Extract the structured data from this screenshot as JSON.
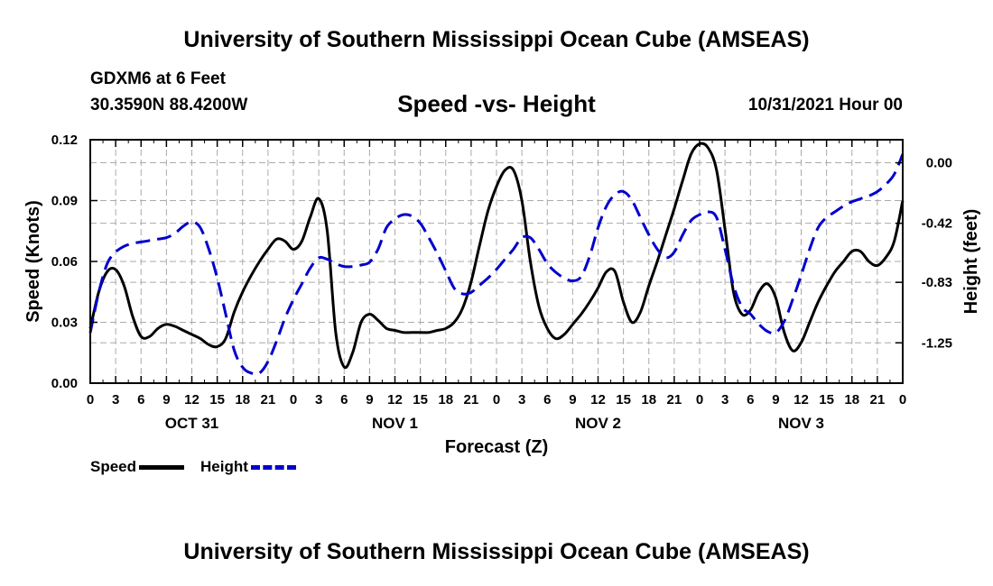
{
  "title": "University of Southern Mississippi Ocean Cube (AMSEAS)",
  "footer_title": "University of Southern Mississippi Ocean Cube (AMSEAS)",
  "station": "GDXM6 at 6 Feet",
  "coords": "30.3590N  88.4200W",
  "subtitle": "Speed -vs- Height",
  "datetime": "10/31/2021 Hour 00",
  "chart_data": {
    "type": "line",
    "title": "Speed -vs- Height",
    "xlabel": "Forecast (Z)",
    "ylabel": "Speed (Knots)",
    "y2label": "Height (feet)",
    "x_range_hours": [
      0,
      96
    ],
    "x_tick_labels": [
      "0",
      "3",
      "6",
      "9",
      "12",
      "15",
      "18",
      "21",
      "0",
      "3",
      "6",
      "9",
      "12",
      "15",
      "18",
      "21",
      "0",
      "3",
      "6",
      "9",
      "12",
      "15",
      "18",
      "21",
      "0",
      "3",
      "6",
      "9",
      "12",
      "15",
      "18",
      "21",
      "0"
    ],
    "day_labels": [
      {
        "label": "OCT 31",
        "hour": 12
      },
      {
        "label": "NOV 1",
        "hour": 36
      },
      {
        "label": "NOV 2",
        "hour": 60
      },
      {
        "label": "NOV 3",
        "hour": 84
      }
    ],
    "ylim": [
      0,
      0.12
    ],
    "y_ticks": [
      "0.00",
      "0.03",
      "0.06",
      "0.09",
      "0.12"
    ],
    "y2lim": [
      -1.53,
      0.16
    ],
    "y2_ticks": [
      {
        "label": "0.00",
        "value": 0.0
      },
      {
        "label": "-0.42",
        "value": -0.42
      },
      {
        "label": "-0.83",
        "value": -0.83
      },
      {
        "label": "-1.25",
        "value": -1.25
      }
    ],
    "grid": true,
    "legend_position": "bottom-left",
    "series": [
      {
        "name": "Speed",
        "axis": "left",
        "color": "#000000",
        "dash": "solid",
        "points": [
          [
            0,
            0.027
          ],
          [
            1,
            0.045
          ],
          [
            2,
            0.055
          ],
          [
            3,
            0.056
          ],
          [
            4,
            0.048
          ],
          [
            5,
            0.033
          ],
          [
            6,
            0.023
          ],
          [
            7,
            0.023
          ],
          [
            8,
            0.027
          ],
          [
            9,
            0.029
          ],
          [
            10,
            0.028
          ],
          [
            11,
            0.026
          ],
          [
            12,
            0.024
          ],
          [
            13,
            0.022
          ],
          [
            14,
            0.019
          ],
          [
            15,
            0.018
          ],
          [
            16,
            0.022
          ],
          [
            17,
            0.035
          ],
          [
            18,
            0.045
          ],
          [
            19,
            0.053
          ],
          [
            20,
            0.06
          ],
          [
            21,
            0.066
          ],
          [
            22,
            0.071
          ],
          [
            23,
            0.07
          ],
          [
            24,
            0.066
          ],
          [
            25,
            0.07
          ],
          [
            26,
            0.082
          ],
          [
            27,
            0.091
          ],
          [
            28,
            0.075
          ],
          [
            29,
            0.025
          ],
          [
            30,
            0.008
          ],
          [
            31,
            0.015
          ],
          [
            32,
            0.03
          ],
          [
            33,
            0.034
          ],
          [
            34,
            0.031
          ],
          [
            35,
            0.027
          ],
          [
            36,
            0.026
          ],
          [
            37,
            0.025
          ],
          [
            38,
            0.025
          ],
          [
            39,
            0.025
          ],
          [
            40,
            0.025
          ],
          [
            41,
            0.026
          ],
          [
            42,
            0.027
          ],
          [
            43,
            0.03
          ],
          [
            44,
            0.037
          ],
          [
            45,
            0.05
          ],
          [
            46,
            0.068
          ],
          [
            47,
            0.085
          ],
          [
            48,
            0.097
          ],
          [
            49,
            0.105
          ],
          [
            50,
            0.105
          ],
          [
            51,
            0.09
          ],
          [
            52,
            0.06
          ],
          [
            53,
            0.038
          ],
          [
            54,
            0.027
          ],
          [
            55,
            0.022
          ],
          [
            56,
            0.024
          ],
          [
            57,
            0.029
          ],
          [
            58,
            0.034
          ],
          [
            59,
            0.04
          ],
          [
            60,
            0.047
          ],
          [
            61,
            0.055
          ],
          [
            62,
            0.055
          ],
          [
            63,
            0.04
          ],
          [
            64,
            0.03
          ],
          [
            65,
            0.035
          ],
          [
            66,
            0.048
          ],
          [
            67,
            0.06
          ],
          [
            68,
            0.073
          ],
          [
            69,
            0.086
          ],
          [
            70,
            0.1
          ],
          [
            71,
            0.113
          ],
          [
            72,
            0.118
          ],
          [
            73,
            0.116
          ],
          [
            74,
            0.105
          ],
          [
            75,
            0.076
          ],
          [
            76,
            0.045
          ],
          [
            77,
            0.034
          ],
          [
            78,
            0.036
          ],
          [
            79,
            0.045
          ],
          [
            80,
            0.049
          ],
          [
            81,
            0.042
          ],
          [
            82,
            0.025
          ],
          [
            83,
            0.016
          ],
          [
            84,
            0.02
          ],
          [
            85,
            0.03
          ],
          [
            86,
            0.04
          ],
          [
            87,
            0.048
          ],
          [
            88,
            0.055
          ],
          [
            89,
            0.06
          ],
          [
            90,
            0.065
          ],
          [
            91,
            0.065
          ],
          [
            92,
            0.06
          ],
          [
            93,
            0.058
          ],
          [
            94,
            0.062
          ],
          [
            95,
            0.07
          ],
          [
            96,
            0.09
          ]
        ]
      },
      {
        "name": "Height",
        "axis": "right",
        "color": "#0000cc",
        "dash": "dashed",
        "points": [
          [
            0,
            -1.18
          ],
          [
            1,
            -0.9
          ],
          [
            2,
            -0.7
          ],
          [
            3,
            -0.62
          ],
          [
            4,
            -0.58
          ],
          [
            5,
            -0.56
          ],
          [
            6,
            -0.55
          ],
          [
            7,
            -0.54
          ],
          [
            8,
            -0.53
          ],
          [
            9,
            -0.52
          ],
          [
            10,
            -0.49
          ],
          [
            11,
            -0.44
          ],
          [
            12,
            -0.41
          ],
          [
            13,
            -0.45
          ],
          [
            14,
            -0.6
          ],
          [
            15,
            -0.8
          ],
          [
            16,
            -1.05
          ],
          [
            17,
            -1.3
          ],
          [
            18,
            -1.42
          ],
          [
            19,
            -1.46
          ],
          [
            20,
            -1.46
          ],
          [
            21,
            -1.38
          ],
          [
            22,
            -1.24
          ],
          [
            23,
            -1.08
          ],
          [
            24,
            -0.95
          ],
          [
            25,
            -0.84
          ],
          [
            26,
            -0.73
          ],
          [
            27,
            -0.66
          ],
          [
            28,
            -0.67
          ],
          [
            29,
            -0.7
          ],
          [
            30,
            -0.72
          ],
          [
            31,
            -0.72
          ],
          [
            32,
            -0.71
          ],
          [
            33,
            -0.69
          ],
          [
            34,
            -0.6
          ],
          [
            35,
            -0.45
          ],
          [
            36,
            -0.39
          ],
          [
            37,
            -0.36
          ],
          [
            38,
            -0.37
          ],
          [
            39,
            -0.42
          ],
          [
            40,
            -0.52
          ],
          [
            41,
            -0.63
          ],
          [
            42,
            -0.75
          ],
          [
            43,
            -0.87
          ],
          [
            44,
            -0.91
          ],
          [
            45,
            -0.9
          ],
          [
            46,
            -0.85
          ],
          [
            47,
            -0.8
          ],
          [
            48,
            -0.74
          ],
          [
            49,
            -0.67
          ],
          [
            50,
            -0.6
          ],
          [
            51,
            -0.52
          ],
          [
            52,
            -0.52
          ],
          [
            53,
            -0.6
          ],
          [
            54,
            -0.7
          ],
          [
            55,
            -0.76
          ],
          [
            56,
            -0.8
          ],
          [
            57,
            -0.82
          ],
          [
            58,
            -0.79
          ],
          [
            59,
            -0.65
          ],
          [
            60,
            -0.45
          ],
          [
            61,
            -0.3
          ],
          [
            62,
            -0.22
          ],
          [
            63,
            -0.2
          ],
          [
            64,
            -0.26
          ],
          [
            65,
            -0.38
          ],
          [
            66,
            -0.5
          ],
          [
            67,
            -0.6
          ],
          [
            68,
            -0.66
          ],
          [
            69,
            -0.62
          ],
          [
            70,
            -0.5
          ],
          [
            71,
            -0.4
          ],
          [
            72,
            -0.36
          ],
          [
            73,
            -0.34
          ],
          [
            74,
            -0.38
          ],
          [
            75,
            -0.6
          ],
          [
            76,
            -0.85
          ],
          [
            77,
            -1.0
          ],
          [
            78,
            -1.05
          ],
          [
            79,
            -1.12
          ],
          [
            80,
            -1.17
          ],
          [
            81,
            -1.18
          ],
          [
            82,
            -1.1
          ],
          [
            83,
            -0.95
          ],
          [
            84,
            -0.78
          ],
          [
            85,
            -0.6
          ],
          [
            86,
            -0.45
          ],
          [
            87,
            -0.38
          ],
          [
            88,
            -0.34
          ],
          [
            89,
            -0.3
          ],
          [
            90,
            -0.27
          ],
          [
            91,
            -0.25
          ],
          [
            92,
            -0.23
          ],
          [
            93,
            -0.2
          ],
          [
            94,
            -0.15
          ],
          [
            95,
            -0.08
          ],
          [
            96,
            0.06
          ]
        ]
      }
    ]
  },
  "legend": {
    "speed_label": "Speed",
    "height_label": "Height"
  }
}
